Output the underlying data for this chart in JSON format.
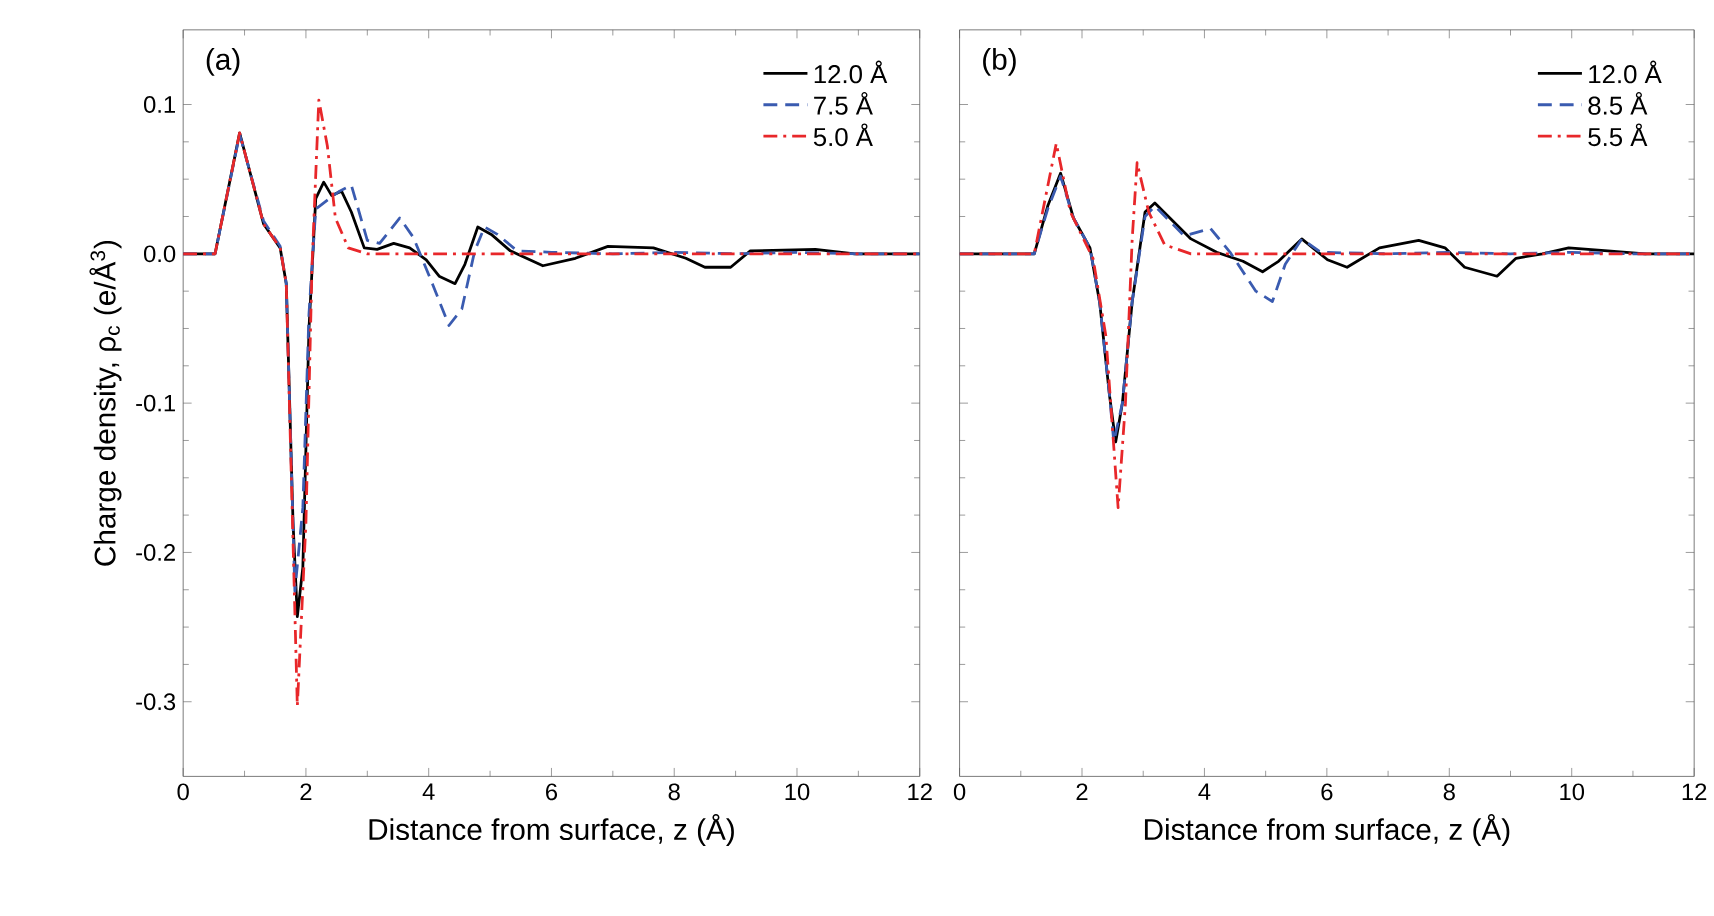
{
  "chart_data": [
    {
      "type": "line",
      "xlabel": "Distance from surface, z (Å)",
      "ylabel": "Charge density, ρ$_{c}$ (e/Å$^{3}$)",
      "annotations": [
        "(a)"
      ],
      "xlim": [
        0,
        12
      ],
      "ylim": [
        -0.35,
        0.15
      ],
      "xticks": [
        0,
        2,
        4,
        6,
        8,
        10,
        12
      ],
      "yticks": [
        -0.3,
        -0.2,
        -0.1,
        {
          "value": 0,
          "label": "0.0"
        },
        0.1
      ],
      "legend": "top right",
      "grid": false,
      "marker": "none",
      "series": [
        {
          "name": "12.0 Å",
          "color": "#000000",
          "line_style": "solid",
          "x": [
            0,
            0.52,
            0.92,
            1.31,
            1.58,
            1.68,
            1.79,
            1.86,
            1.95,
            2.05,
            2.16,
            2.29,
            2.42,
            2.58,
            2.74,
            2.95,
            3.16,
            3.43,
            3.69,
            3.96,
            4.17,
            4.43,
            4.59,
            4.8,
            5.02,
            5.33,
            5.86,
            6.39,
            6.92,
            7.66,
            8.19,
            8.5,
            8.92,
            9.24,
            10.3,
            10.94,
            12
          ],
          "values": [
            0,
            0,
            0.081,
            0.02,
            0.004,
            -0.02,
            -0.18,
            -0.243,
            -0.21,
            -0.05,
            0.037,
            0.048,
            0.039,
            0.042,
            0.028,
            0.004,
            0.003,
            0.007,
            0.004,
            -0.004,
            -0.015,
            -0.02,
            -0.007,
            0.018,
            0.013,
            0.002,
            -0.008,
            -0.003,
            0.005,
            0.004,
            -0.003,
            -0.009,
            -0.009,
            0.002,
            0.003,
            0,
            0
          ]
        },
        {
          "name": "7.5 Å",
          "color": "#3a5bb0",
          "line_style": "dashed",
          "x": [
            0,
            0.52,
            0.92,
            1.31,
            1.58,
            1.68,
            1.82,
            1.95,
            2.05,
            2.16,
            2.35,
            2.55,
            2.74,
            3.0,
            3.2,
            3.53,
            3.75,
            4.06,
            4.33,
            4.54,
            4.75,
            4.91,
            5.12,
            5.44,
            6.0,
            7.0,
            8.0,
            9.0,
            10.0,
            11.0,
            12
          ],
          "values": [
            0,
            0,
            0.08,
            0.022,
            0.005,
            -0.02,
            -0.226,
            -0.17,
            -0.04,
            0.03,
            0.036,
            0.042,
            0.046,
            0.009,
            0.007,
            0.024,
            0.011,
            -0.02,
            -0.048,
            -0.037,
            0.002,
            0.018,
            0.013,
            0.002,
            0.001,
            0,
            0.001,
            0,
            0.001,
            0,
            0
          ]
        },
        {
          "name": "5.0 Å",
          "color": "#e8272a",
          "line_style": "dashdot",
          "x": [
            0,
            0.52,
            0.92,
            1.31,
            1.58,
            1.68,
            1.86,
            2.0,
            2.1,
            2.21,
            2.35,
            2.48,
            2.69,
            3.0,
            12
          ],
          "values": [
            0,
            0,
            0.081,
            0.02,
            0.004,
            -0.02,
            -0.303,
            -0.18,
            -0.007,
            0.103,
            0.072,
            0.024,
            0.004,
            0,
            0
          ]
        }
      ]
    },
    {
      "type": "line",
      "xlabel": "Distance from surface, z (Å)",
      "annotations": [
        "(b)"
      ],
      "xlim": [
        0,
        12
      ],
      "ylim": [
        -0.35,
        0.15
      ],
      "xticks": [
        0,
        2,
        4,
        6,
        8,
        10,
        12
      ],
      "yticks": [
        -0.3,
        -0.2,
        -0.1,
        0,
        0.1
      ],
      "tick_labels": "x",
      "legend": "top right",
      "grid": false,
      "marker": "none",
      "series": [
        {
          "name": "12.0 Å",
          "color": "#000000",
          "line_style": "solid",
          "x": [
            0,
            1.22,
            1.44,
            1.65,
            1.86,
            2.13,
            2.29,
            2.45,
            2.55,
            2.66,
            2.82,
            3.03,
            3.19,
            3.46,
            3.78,
            4.2,
            4.63,
            4.95,
            5.21,
            5.59,
            6.01,
            6.33,
            6.86,
            7.5,
            7.93,
            8.25,
            8.78,
            9.09,
            9.52,
            9.95,
            10.59,
            11.2,
            12
          ],
          "values": [
            0,
            0,
            0.032,
            0.054,
            0.024,
            0.004,
            -0.033,
            -0.095,
            -0.126,
            -0.1,
            -0.032,
            0.028,
            0.034,
            0.023,
            0.01,
            0.001,
            -0.005,
            -0.012,
            -0.005,
            0.01,
            -0.004,
            -0.009,
            0.004,
            0.009,
            0.004,
            -0.009,
            -0.015,
            -0.003,
            0,
            0.004,
            0.002,
            0,
            0
          ]
        },
        {
          "name": "8.5 Å",
          "color": "#3a5bb0",
          "line_style": "dashed",
          "x": [
            0,
            1.22,
            1.44,
            1.65,
            1.86,
            2.13,
            2.29,
            2.45,
            2.52,
            2.66,
            2.82,
            3.03,
            3.19,
            3.67,
            4.1,
            4.42,
            4.84,
            5.11,
            5.32,
            5.59,
            5.9,
            7.0,
            8.0,
            9.0,
            10.0,
            11.0,
            12
          ],
          "values": [
            0,
            0,
            0.03,
            0.052,
            0.024,
            0.004,
            -0.033,
            -0.095,
            -0.126,
            -0.1,
            -0.032,
            0.025,
            0.032,
            0.012,
            0.017,
            0.001,
            -0.025,
            -0.032,
            -0.007,
            0.01,
            0.001,
            0,
            0.001,
            0,
            0.001,
            0,
            0
          ]
        },
        {
          "name": "5.5 Å",
          "color": "#e8272a",
          "line_style": "dashdot",
          "x": [
            0,
            1.22,
            1.58,
            1.81,
            2.18,
            2.39,
            2.59,
            2.71,
            2.82,
            2.9,
            3.09,
            3.35,
            3.78,
            12
          ],
          "values": [
            0,
            0,
            0.074,
            0.028,
            -0.003,
            -0.055,
            -0.17,
            -0.1,
            0.01,
            0.061,
            0.028,
            0.006,
            0,
            0
          ]
        }
      ]
    }
  ]
}
